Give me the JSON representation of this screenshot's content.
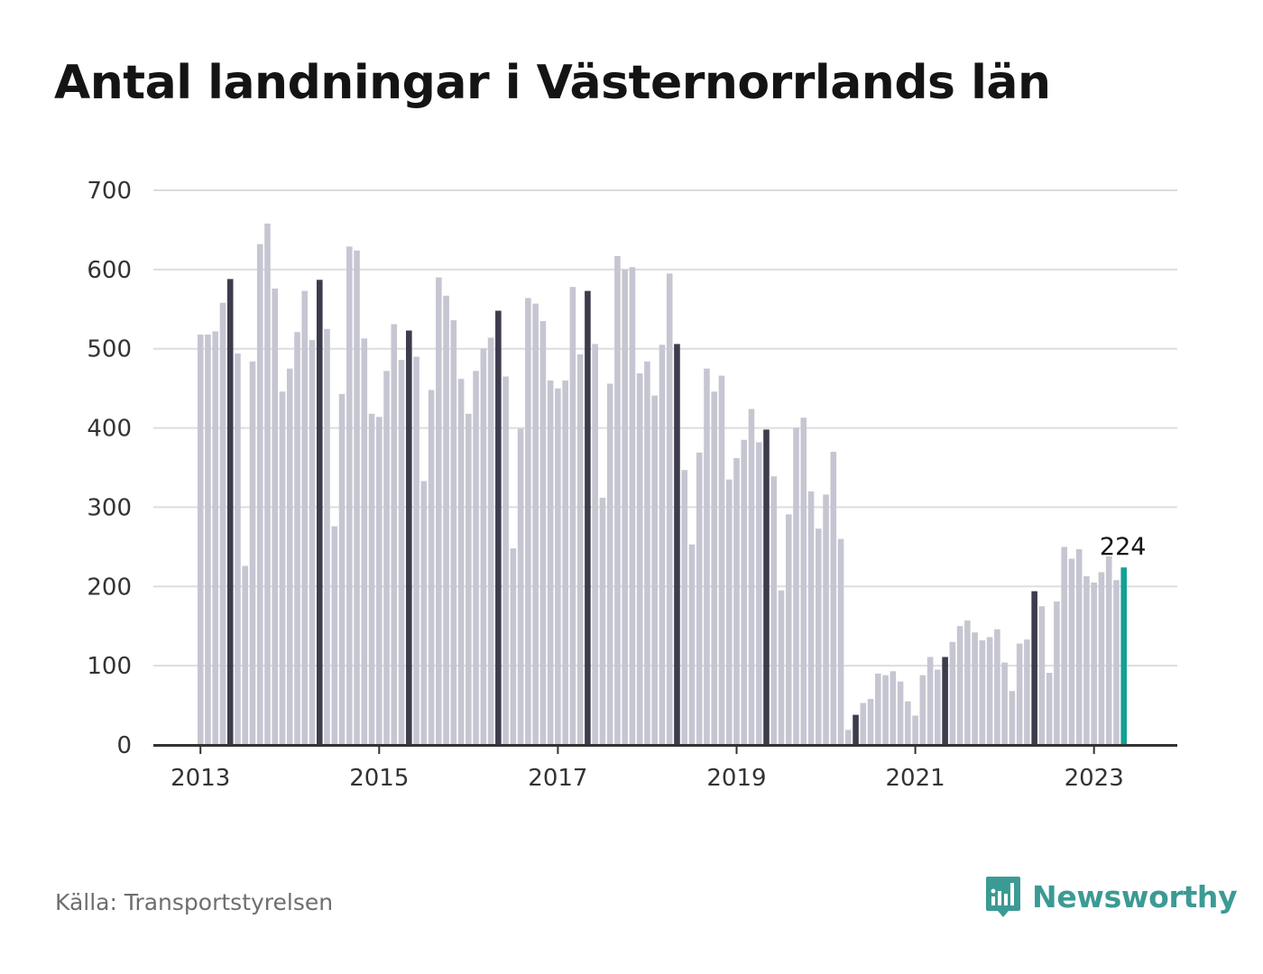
{
  "title": "Antal landningar i Västernorrlands län",
  "source": "Källa: Transportstyrelsen",
  "brand": {
    "name": "Newsworthy",
    "icon": "newsworthy-logo-icon"
  },
  "colors": {
    "bar": "#c6c6d2",
    "highlight_month": "#3c3c4c",
    "latest": "#14a096",
    "grid": "#dddddd",
    "axis": "#333333",
    "brand": "#3c9a94"
  },
  "chart_data": {
    "type": "bar",
    "x_start": "2013-01",
    "x_ticks": [
      "2013",
      "2015",
      "2017",
      "2019",
      "2021",
      "2023"
    ],
    "y_ticks": [
      "0",
      "100",
      "200",
      "300",
      "400",
      "500",
      "600",
      "700"
    ],
    "ylim": [
      0,
      700
    ],
    "grid": true,
    "highlight": "May of each year (dark bars); latest month in teal",
    "annotation": {
      "label": "224",
      "month": "2023-05"
    },
    "values": [
      518,
      518,
      522,
      558,
      588,
      494,
      226,
      484,
      632,
      658,
      576,
      446,
      475,
      521,
      573,
      511,
      587,
      525,
      276,
      443,
      629,
      624,
      513,
      418,
      414,
      472,
      531,
      486,
      523,
      490,
      333,
      448,
      590,
      567,
      536,
      462,
      418,
      472,
      500,
      514,
      548,
      465,
      248,
      399,
      564,
      557,
      535,
      460,
      450,
      460,
      578,
      493,
      573,
      506,
      312,
      456,
      617,
      600,
      603,
      469,
      484,
      441,
      505,
      595,
      506,
      347,
      253,
      369,
      475,
      446,
      466,
      335,
      362,
      385,
      424,
      382,
      398,
      339,
      195,
      291,
      400,
      413,
      320,
      273,
      316,
      370,
      260,
      19,
      38,
      53,
      58,
      90,
      88,
      93,
      80,
      55,
      37,
      88,
      111,
      95,
      111,
      130,
      150,
      157,
      142,
      132,
      136,
      146,
      104,
      68,
      128,
      133,
      194,
      175,
      91,
      181,
      250,
      235,
      247,
      213,
      205,
      218,
      238,
      208,
      224
    ]
  }
}
